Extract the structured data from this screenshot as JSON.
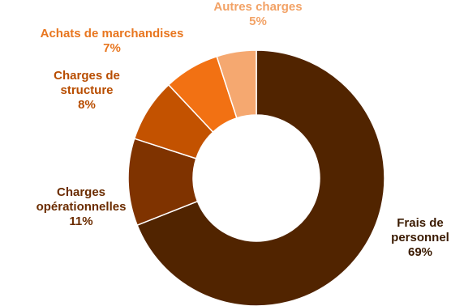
{
  "chart_data": {
    "type": "pie",
    "variant": "donut",
    "title": "",
    "start_at": "top",
    "direction": "clockwise",
    "slices": [
      {
        "name": "Frais de personnel",
        "lines": [
          "Frais de",
          "personnel"
        ],
        "value": 69,
        "value_label": "69%",
        "color": "#512400",
        "label_color": "#3a1a00"
      },
      {
        "name": "Charges opérationnelles",
        "lines": [
          "Charges",
          "opérationnelles"
        ],
        "value": 11,
        "value_label": "11%",
        "color": "#7f3300",
        "label_color": "#6b2c00"
      },
      {
        "name": "Charges de structure",
        "lines": [
          "Charges de",
          "structure"
        ],
        "value": 8,
        "value_label": "8%",
        "color": "#c35200",
        "label_color": "#b84d00"
      },
      {
        "name": "Achats de marchandises",
        "lines": [
          "Achats de marchandises"
        ],
        "value": 7,
        "value_label": "7%",
        "color": "#f27113",
        "label_color": "#e8761f"
      },
      {
        "name": "Autres charges",
        "lines": [
          "Autres charges"
        ],
        "value": 5,
        "value_label": "5%",
        "color": "#f5a870",
        "label_color": "#f2a266"
      }
    ],
    "legend": "none",
    "labels_position": "outside"
  }
}
